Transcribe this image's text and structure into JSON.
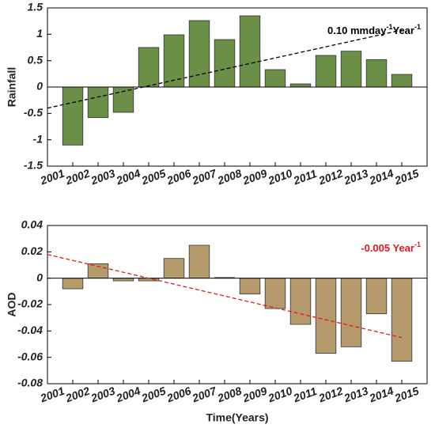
{
  "chart_data": [
    {
      "type": "bar",
      "ylabel": "Rainfall",
      "x": [
        2002,
        2003,
        2004,
        2005,
        2006,
        2007,
        2008,
        2009,
        2010,
        2011,
        2012,
        2013,
        2014,
        2015
      ],
      "values": [
        -1.1,
        -0.58,
        -0.48,
        0.75,
        0.99,
        1.26,
        0.9,
        1.35,
        0.33,
        0.06,
        0.6,
        0.68,
        0.52,
        0.24
      ],
      "color": "#6b8f47",
      "xlim": [
        2001,
        2016
      ],
      "xticks": [
        2001,
        2002,
        2003,
        2004,
        2005,
        2006,
        2007,
        2008,
        2009,
        2010,
        2011,
        2012,
        2013,
        2014,
        2015
      ],
      "ylim": [
        -1.5,
        1.5
      ],
      "yticks": [
        -1.5,
        -1,
        -0.5,
        0,
        0.5,
        1,
        1.5
      ],
      "trend": {
        "x": [
          2001,
          2015
        ],
        "values": [
          -0.4,
          1.08
        ],
        "color": "#000000",
        "label": [
          "0.10 mmday",
          "-1",
          "Year",
          "-1"
        ]
      }
    },
    {
      "type": "bar",
      "ylabel": "AOD",
      "xlabel": "Time(Years)",
      "x": [
        2002,
        2003,
        2004,
        2005,
        2006,
        2007,
        2008,
        2009,
        2010,
        2011,
        2012,
        2013,
        2014,
        2015
      ],
      "values": [
        -0.008,
        0.011,
        -0.002,
        -0.002,
        0.015,
        0.025,
        0.0005,
        -0.012,
        -0.023,
        -0.035,
        -0.057,
        -0.052,
        -0.027,
        -0.063
      ],
      "color": "#b59a6b",
      "xlim": [
        2001,
        2016
      ],
      "xticks": [
        2001,
        2002,
        2003,
        2004,
        2005,
        2006,
        2007,
        2008,
        2009,
        2010,
        2011,
        2012,
        2013,
        2014,
        2015
      ],
      "ylim": [
        -0.08,
        0.04
      ],
      "yticks": [
        -0.08,
        -0.06,
        -0.04,
        -0.02,
        0,
        0.02,
        0.04
      ],
      "trend": {
        "x": [
          2001,
          2015
        ],
        "values": [
          0.018,
          -0.045
        ],
        "color": "#e8171f",
        "label": [
          "-0.005 Year",
          "-1"
        ]
      }
    }
  ]
}
